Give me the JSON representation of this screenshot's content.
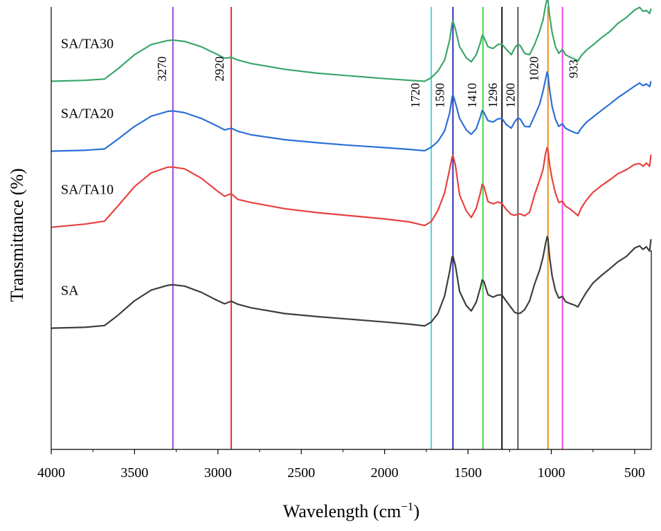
{
  "chart_data": {
    "type": "line",
    "title": "",
    "xlabel_main": "Wavelength (cm",
    "xlabel_sup": "−1",
    "xlabel_close": ")",
    "ylabel": "Transmittance (%)",
    "xlim": [
      4000,
      400
    ],
    "ylim": [
      0,
      100
    ],
    "xticks": [
      4000,
      3500,
      3000,
      2500,
      2000,
      1500,
      1000,
      500
    ],
    "xtick_labels": [
      "4000",
      "3500",
      "3000",
      "2500",
      "2000",
      "1500",
      "1000",
      "500"
    ],
    "grid": false,
    "series": [
      {
        "name": "SA/TA30",
        "color": "#3aa66a",
        "points": [
          [
            4000,
            83.2
          ],
          [
            3800,
            83.4
          ],
          [
            3680,
            83.7
          ],
          [
            3600,
            86.0
          ],
          [
            3500,
            89.2
          ],
          [
            3400,
            91.5
          ],
          [
            3300,
            92.4
          ],
          [
            3270,
            92.5
          ],
          [
            3200,
            92.2
          ],
          [
            3100,
            91.0
          ],
          [
            3000,
            89.2
          ],
          [
            2960,
            88.4
          ],
          [
            2920,
            88.6
          ],
          [
            2880,
            88.0
          ],
          [
            2800,
            87.2
          ],
          [
            2600,
            85.9
          ],
          [
            2400,
            85.0
          ],
          [
            2200,
            84.4
          ],
          [
            2000,
            83.8
          ],
          [
            1850,
            83.4
          ],
          [
            1760,
            83.2
          ],
          [
            1720,
            84.0
          ],
          [
            1680,
            85.5
          ],
          [
            1640,
            88.0
          ],
          [
            1610,
            92.5
          ],
          [
            1595,
            96.3
          ],
          [
            1590,
            96.8
          ],
          [
            1575,
            95.0
          ],
          [
            1550,
            91.0
          ],
          [
            1510,
            88.5
          ],
          [
            1480,
            87.6
          ],
          [
            1450,
            89.2
          ],
          [
            1425,
            92.0
          ],
          [
            1415,
            93.6
          ],
          [
            1405,
            93.2
          ],
          [
            1380,
            91.0
          ],
          [
            1350,
            90.6
          ],
          [
            1320,
            91.5
          ],
          [
            1296,
            91.6
          ],
          [
            1270,
            90.4
          ],
          [
            1240,
            89.2
          ],
          [
            1220,
            90.7
          ],
          [
            1200,
            91.6
          ],
          [
            1185,
            91.2
          ],
          [
            1160,
            89.5
          ],
          [
            1130,
            89.2
          ],
          [
            1100,
            91.5
          ],
          [
            1070,
            94.5
          ],
          [
            1050,
            97.0
          ],
          [
            1035,
            100.2
          ],
          [
            1025,
            102.0
          ],
          [
            1020,
            101.4
          ],
          [
            1010,
            98.0
          ],
          [
            995,
            94.2
          ],
          [
            975,
            91.0
          ],
          [
            955,
            89.5
          ],
          [
            933,
            90.4
          ],
          [
            915,
            89.2
          ],
          [
            890,
            88.7
          ],
          [
            860,
            88.2
          ],
          [
            840,
            87.8
          ],
          [
            820,
            89.0
          ],
          [
            790,
            90.2
          ],
          [
            750,
            91.4
          ],
          [
            700,
            93.0
          ],
          [
            650,
            94.4
          ],
          [
            600,
            96.3
          ],
          [
            550,
            97.6
          ],
          [
            500,
            99.3
          ],
          [
            470,
            99.9
          ],
          [
            450,
            99.0
          ],
          [
            430,
            99.2
          ],
          [
            410,
            98.5
          ],
          [
            402,
            99.6
          ]
        ]
      },
      {
        "name": "SA/TA20",
        "color": "#2a6fd6",
        "points": [
          [
            4000,
            67.4
          ],
          [
            3800,
            67.6
          ],
          [
            3680,
            67.9
          ],
          [
            3600,
            70.1
          ],
          [
            3500,
            73.0
          ],
          [
            3400,
            75.3
          ],
          [
            3300,
            76.4
          ],
          [
            3270,
            76.5
          ],
          [
            3200,
            76.1
          ],
          [
            3100,
            74.8
          ],
          [
            3000,
            73.0
          ],
          [
            2960,
            72.2
          ],
          [
            2920,
            72.6
          ],
          [
            2880,
            71.9
          ],
          [
            2800,
            71.1
          ],
          [
            2600,
            70.0
          ],
          [
            2400,
            69.3
          ],
          [
            2200,
            68.7
          ],
          [
            2000,
            68.2
          ],
          [
            1850,
            67.8
          ],
          [
            1760,
            67.5
          ],
          [
            1720,
            68.3
          ],
          [
            1680,
            69.6
          ],
          [
            1640,
            72.0
          ],
          [
            1610,
            76.0
          ],
          [
            1595,
            79.6
          ],
          [
            1590,
            80.2
          ],
          [
            1575,
            78.3
          ],
          [
            1550,
            74.8
          ],
          [
            1510,
            72.2
          ],
          [
            1480,
            71.2
          ],
          [
            1450,
            72.5
          ],
          [
            1425,
            75.2
          ],
          [
            1415,
            76.6
          ],
          [
            1405,
            76.2
          ],
          [
            1380,
            74.3
          ],
          [
            1350,
            74.0
          ],
          [
            1320,
            74.7
          ],
          [
            1296,
            74.8
          ],
          [
            1270,
            73.4
          ],
          [
            1240,
            72.6
          ],
          [
            1220,
            74.0
          ],
          [
            1200,
            74.9
          ],
          [
            1185,
            74.6
          ],
          [
            1160,
            73.0
          ],
          [
            1130,
            72.9
          ],
          [
            1100,
            75.4
          ],
          [
            1070,
            78.0
          ],
          [
            1050,
            80.9
          ],
          [
            1035,
            83.6
          ],
          [
            1025,
            85.3
          ],
          [
            1020,
            84.6
          ],
          [
            1010,
            81.3
          ],
          [
            995,
            77.5
          ],
          [
            975,
            74.6
          ],
          [
            955,
            73.0
          ],
          [
            933,
            73.6
          ],
          [
            915,
            72.6
          ],
          [
            890,
            72.1
          ],
          [
            860,
            71.6
          ],
          [
            840,
            71.4
          ],
          [
            820,
            72.6
          ],
          [
            790,
            73.9
          ],
          [
            750,
            75.1
          ],
          [
            700,
            76.6
          ],
          [
            650,
            78.0
          ],
          [
            600,
            79.5
          ],
          [
            550,
            80.8
          ],
          [
            500,
            82.1
          ],
          [
            470,
            82.8
          ],
          [
            450,
            82.2
          ],
          [
            430,
            82.6
          ],
          [
            410,
            82.0
          ],
          [
            402,
            83.2
          ]
        ]
      },
      {
        "name": "SA/TA10",
        "color": "#e8403e",
        "points": [
          [
            4000,
            50.2
          ],
          [
            3800,
            50.9
          ],
          [
            3680,
            51.6
          ],
          [
            3600,
            55.0
          ],
          [
            3500,
            59.4
          ],
          [
            3400,
            62.5
          ],
          [
            3300,
            63.8
          ],
          [
            3270,
            63.8
          ],
          [
            3200,
            63.4
          ],
          [
            3100,
            61.3
          ],
          [
            3000,
            58.3
          ],
          [
            2960,
            57.2
          ],
          [
            2920,
            57.8
          ],
          [
            2880,
            56.5
          ],
          [
            2800,
            55.8
          ],
          [
            2600,
            54.4
          ],
          [
            2400,
            53.5
          ],
          [
            2200,
            52.8
          ],
          [
            2000,
            52.1
          ],
          [
            1850,
            51.4
          ],
          [
            1760,
            50.6
          ],
          [
            1720,
            51.5
          ],
          [
            1680,
            54.0
          ],
          [
            1640,
            58.0
          ],
          [
            1610,
            63.3
          ],
          [
            1595,
            66.1
          ],
          [
            1590,
            66.4
          ],
          [
            1575,
            64.2
          ],
          [
            1550,
            57.5
          ],
          [
            1510,
            53.9
          ],
          [
            1480,
            52.4
          ],
          [
            1450,
            54.5
          ],
          [
            1425,
            58.0
          ],
          [
            1415,
            59.9
          ],
          [
            1405,
            59.5
          ],
          [
            1380,
            56.0
          ],
          [
            1350,
            55.5
          ],
          [
            1320,
            55.9
          ],
          [
            1296,
            55.6
          ],
          [
            1270,
            54.2
          ],
          [
            1240,
            53.1
          ],
          [
            1220,
            52.9
          ],
          [
            1200,
            53.2
          ],
          [
            1185,
            53.2
          ],
          [
            1160,
            52.8
          ],
          [
            1130,
            53.6
          ],
          [
            1100,
            57.6
          ],
          [
            1070,
            60.8
          ],
          [
            1050,
            63.2
          ],
          [
            1035,
            66.8
          ],
          [
            1025,
            68.2
          ],
          [
            1020,
            67.6
          ],
          [
            1010,
            64.3
          ],
          [
            995,
            61.1
          ],
          [
            975,
            57.9
          ],
          [
            955,
            55.8
          ],
          [
            933,
            56.1
          ],
          [
            915,
            55.0
          ],
          [
            890,
            54.4
          ],
          [
            860,
            53.5
          ],
          [
            840,
            52.8
          ],
          [
            820,
            54.6
          ],
          [
            790,
            56.3
          ],
          [
            750,
            58.1
          ],
          [
            700,
            59.6
          ],
          [
            650,
            60.9
          ],
          [
            600,
            62.3
          ],
          [
            550,
            63.2
          ],
          [
            500,
            64.4
          ],
          [
            470,
            64.6
          ],
          [
            450,
            64.0
          ],
          [
            430,
            64.7
          ],
          [
            410,
            64.0
          ],
          [
            402,
            66.6
          ]
        ]
      },
      {
        "name": "SA",
        "color": "#3d3d3d",
        "points": [
          [
            4000,
            27.4
          ],
          [
            3800,
            27.6
          ],
          [
            3680,
            28.0
          ],
          [
            3600,
            30.3
          ],
          [
            3500,
            33.6
          ],
          [
            3400,
            36.0
          ],
          [
            3300,
            37.1
          ],
          [
            3270,
            37.2
          ],
          [
            3200,
            36.9
          ],
          [
            3100,
            35.5
          ],
          [
            3000,
            33.6
          ],
          [
            2960,
            32.9
          ],
          [
            2920,
            33.5
          ],
          [
            2880,
            32.8
          ],
          [
            2800,
            32.0
          ],
          [
            2600,
            30.7
          ],
          [
            2400,
            30.0
          ],
          [
            2200,
            29.4
          ],
          [
            2000,
            28.8
          ],
          [
            1850,
            28.3
          ],
          [
            1760,
            27.9
          ],
          [
            1720,
            28.8
          ],
          [
            1680,
            30.7
          ],
          [
            1640,
            34.7
          ],
          [
            1610,
            40.2
          ],
          [
            1595,
            43.5
          ],
          [
            1590,
            43.7
          ],
          [
            1575,
            41.5
          ],
          [
            1550,
            35.7
          ],
          [
            1510,
            32.5
          ],
          [
            1480,
            31.3
          ],
          [
            1450,
            33.3
          ],
          [
            1425,
            36.6
          ],
          [
            1415,
            38.3
          ],
          [
            1405,
            38.0
          ],
          [
            1380,
            35.0
          ],
          [
            1350,
            34.4
          ],
          [
            1320,
            34.9
          ],
          [
            1296,
            34.9
          ],
          [
            1270,
            33.5
          ],
          [
            1240,
            32.0
          ],
          [
            1220,
            31.0
          ],
          [
            1200,
            30.7
          ],
          [
            1185,
            30.8
          ],
          [
            1160,
            31.6
          ],
          [
            1130,
            33.6
          ],
          [
            1100,
            37.4
          ],
          [
            1070,
            40.5
          ],
          [
            1050,
            43.4
          ],
          [
            1035,
            46.4
          ],
          [
            1025,
            48.1
          ],
          [
            1020,
            47.6
          ],
          [
            1010,
            43.4
          ],
          [
            995,
            39.2
          ],
          [
            975,
            35.9
          ],
          [
            955,
            34.2
          ],
          [
            933,
            34.6
          ],
          [
            915,
            33.4
          ],
          [
            890,
            33.0
          ],
          [
            860,
            32.6
          ],
          [
            840,
            32.2
          ],
          [
            820,
            33.6
          ],
          [
            790,
            35.5
          ],
          [
            750,
            37.6
          ],
          [
            700,
            39.3
          ],
          [
            650,
            40.8
          ],
          [
            600,
            42.4
          ],
          [
            550,
            43.6
          ],
          [
            500,
            45.5
          ],
          [
            470,
            46.0
          ],
          [
            450,
            45.2
          ],
          [
            430,
            45.8
          ],
          [
            410,
            44.8
          ],
          [
            402,
            47.5
          ]
        ]
      }
    ],
    "vlines": [
      {
        "x": 3270,
        "label": "3270",
        "color": "#a044d8",
        "label_y": 86,
        "label_dx": -10
      },
      {
        "x": 2920,
        "label": "2920",
        "color": "#e52b2b",
        "label_y": 86,
        "label_dx": -11
      },
      {
        "x": 1720,
        "label": "1720",
        "color": "#3fd8e4",
        "label_y": 80,
        "label_dx": -17
      },
      {
        "x": 1590,
        "label": "1590",
        "color": "#2b2bb8",
        "label_y": 80,
        "label_dx": -13
      },
      {
        "x": 1410,
        "label": "1410",
        "color": "#3fd83f",
        "label_y": 80,
        "label_dx": -10
      },
      {
        "x": 1296,
        "label": "1296",
        "color": "#111111",
        "label_y": 80,
        "label_dx": -7
      },
      {
        "x": 1200,
        "label": "1200",
        "color": "#555555",
        "label_y": 80,
        "label_dx": -5
      },
      {
        "x": 1020,
        "label": "1020",
        "color": "#f08c1c",
        "label_y": 86,
        "label_dx": -14
      },
      {
        "x": 933,
        "label": "933",
        "color": "#ee44ee",
        "label_y": 86,
        "label_dx": 22
      }
    ]
  }
}
